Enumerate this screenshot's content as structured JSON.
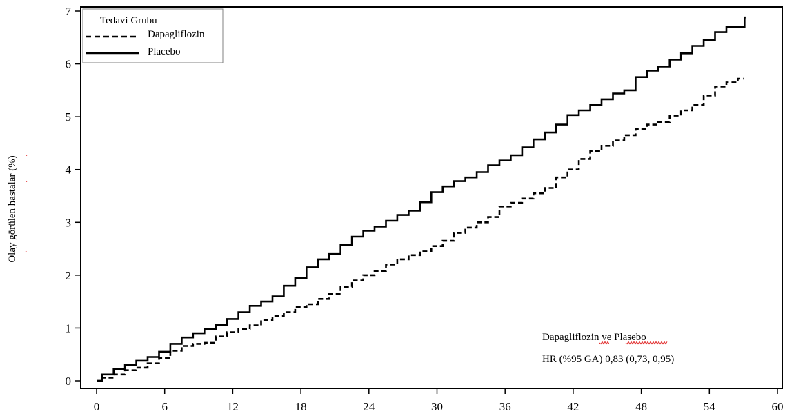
{
  "chart_data": {
    "type": "line",
    "title": "",
    "xlabel": "",
    "ylabel": "Olay görülen hastalar (%)",
    "xlim": [
      0,
      60
    ],
    "ylim": [
      0,
      7
    ],
    "xticks": [
      0,
      6,
      12,
      18,
      24,
      30,
      36,
      42,
      48,
      54,
      60
    ],
    "yticks": [
      0,
      1,
      2,
      3,
      4,
      5,
      6,
      7
    ],
    "grid": false,
    "legend": {
      "title": "Tedavi Grubu",
      "placement": "top-left"
    },
    "series": [
      {
        "name": "Dapagliflozin",
        "style": "dashed",
        "color": "#000000",
        "x": [
          0,
          1,
          2,
          3,
          4,
          5,
          6,
          7,
          8,
          9,
          10,
          11,
          12,
          13,
          14,
          15,
          16,
          17,
          18,
          19,
          20,
          21,
          22,
          23,
          24,
          25,
          26,
          27,
          28,
          29,
          30,
          31,
          32,
          33,
          34,
          35,
          36,
          37,
          38,
          39,
          40,
          41,
          42,
          43,
          44,
          45,
          46,
          47,
          48,
          49,
          50,
          51,
          52,
          53,
          54,
          55,
          56,
          57
        ],
        "y": [
          0,
          0.06,
          0.12,
          0.2,
          0.25,
          0.33,
          0.43,
          0.57,
          0.66,
          0.7,
          0.72,
          0.84,
          0.92,
          0.98,
          1.05,
          1.15,
          1.23,
          1.3,
          1.4,
          1.45,
          1.55,
          1.65,
          1.78,
          1.9,
          2.0,
          2.08,
          2.2,
          2.3,
          2.38,
          2.45,
          2.55,
          2.65,
          2.8,
          2.9,
          3.0,
          3.1,
          3.3,
          3.37,
          3.45,
          3.55,
          3.65,
          3.85,
          4.0,
          4.2,
          4.35,
          4.45,
          4.55,
          4.65,
          4.77,
          4.85,
          4.9,
          5.02,
          5.12,
          5.22,
          5.4,
          5.57,
          5.65,
          5.72
        ]
      },
      {
        "name": "Placebo",
        "style": "solid",
        "color": "#000000",
        "x": [
          0,
          1,
          2,
          3,
          4,
          5,
          6,
          7,
          8,
          9,
          10,
          11,
          12,
          13,
          14,
          15,
          16,
          17,
          18,
          19,
          20,
          21,
          22,
          23,
          24,
          25,
          26,
          27,
          28,
          29,
          30,
          31,
          32,
          33,
          34,
          35,
          36,
          37,
          38,
          39,
          40,
          41,
          42,
          43,
          44,
          45,
          46,
          47,
          48,
          49,
          50,
          51,
          52,
          53,
          54,
          55,
          56,
          57,
          57.2
        ],
        "y": [
          0,
          0.12,
          0.22,
          0.3,
          0.38,
          0.45,
          0.55,
          0.7,
          0.82,
          0.9,
          0.98,
          1.06,
          1.17,
          1.3,
          1.42,
          1.5,
          1.6,
          1.8,
          1.95,
          2.15,
          2.3,
          2.4,
          2.57,
          2.73,
          2.84,
          2.92,
          3.03,
          3.14,
          3.22,
          3.38,
          3.57,
          3.68,
          3.78,
          3.85,
          3.95,
          4.08,
          4.17,
          4.27,
          4.42,
          4.57,
          4.7,
          4.85,
          5.03,
          5.12,
          5.22,
          5.33,
          5.44,
          5.5,
          5.75,
          5.87,
          5.95,
          6.08,
          6.2,
          6.34,
          6.45,
          6.6,
          6.7,
          6.7,
          6.88
        ]
      }
    ],
    "annotation": {
      "line1": "Dapagliflozin ve Plasebo",
      "line2": "HR (%95 GA)  0,83 (0,73, 0,95)"
    }
  }
}
